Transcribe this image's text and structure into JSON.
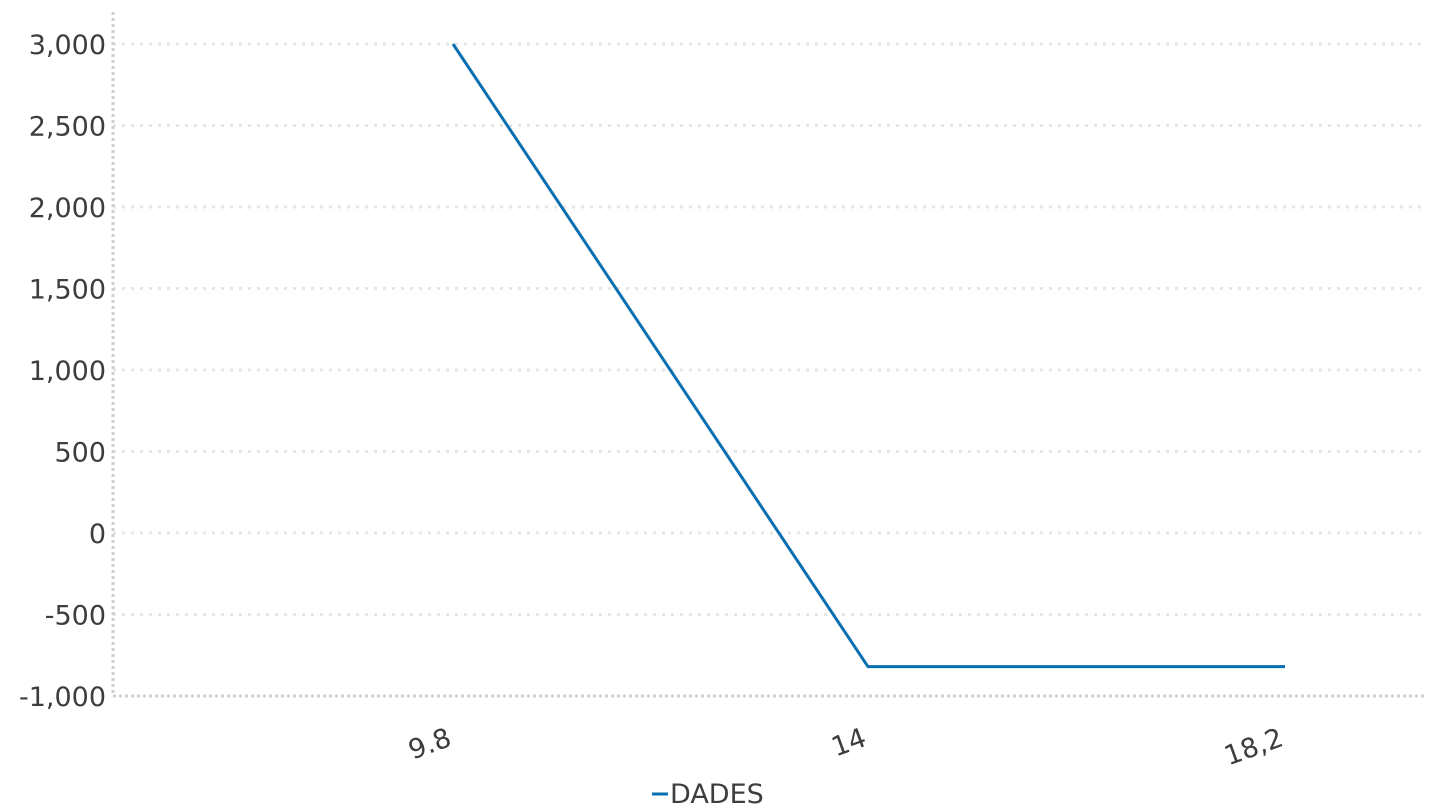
{
  "chart_data": {
    "type": "line",
    "title": "",
    "xlabel": "",
    "ylabel": "",
    "x": [
      "9.8",
      "14",
      "18,2"
    ],
    "series": [
      {
        "name": "DADES",
        "values": [
          3000,
          -820,
          -820
        ],
        "color": "#0a6faf"
      }
    ],
    "ylim": [
      -1000,
      3000
    ],
    "yticks": [
      3000,
      2500,
      2000,
      1500,
      1000,
      500,
      0,
      -500,
      -1000
    ],
    "ytick_labels": [
      "3,000",
      "2,500",
      "2,000",
      "1,500",
      "1,000",
      "500",
      "0",
      "-500",
      "-1,000"
    ],
    "grid": true,
    "legend": "bottom-center"
  }
}
